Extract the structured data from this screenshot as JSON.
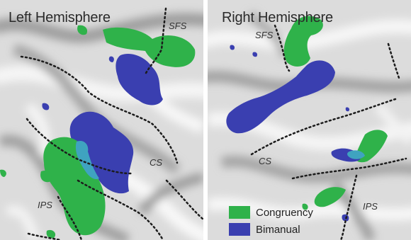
{
  "panels": {
    "left": {
      "title": "Left Hemisphere",
      "labels": {
        "sfs": "SFS",
        "cs": "CS",
        "ips": "IPS"
      }
    },
    "right": {
      "title": "Right Hemisphere",
      "labels": {
        "sfs": "SFS",
        "cs": "CS",
        "ips": "IPS"
      }
    }
  },
  "legend": [
    {
      "label": "Congruency",
      "color": "#2fb24a"
    },
    {
      "label": "Bimanual",
      "color": "#3a3fb0"
    }
  ],
  "colors": {
    "cortex_light": "#f2f2f2",
    "cortex_dark": "#a9a9a9",
    "congruency": "#2fb24a",
    "bimanual": "#3a3fb0",
    "overlap": "#3fa3c0",
    "sulcus_line": "#1c1c1c"
  }
}
